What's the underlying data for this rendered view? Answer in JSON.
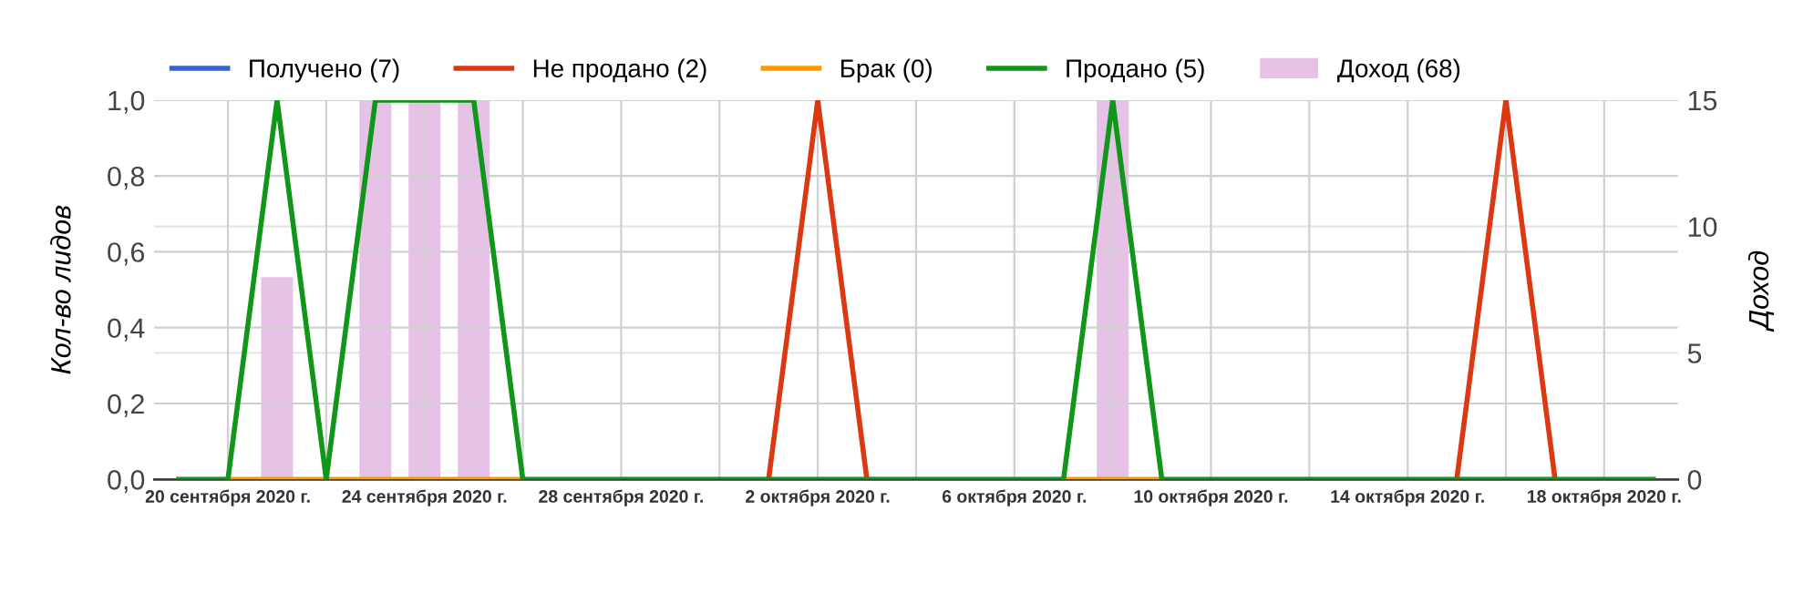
{
  "chart_data": {
    "type": "line",
    "ylabel": "Кол-во лидов",
    "y2label": "Доход",
    "x": [
      "2020-09-19",
      "2020-09-20",
      "2020-09-21",
      "2020-09-22",
      "2020-09-23",
      "2020-09-24",
      "2020-09-25",
      "2020-09-26",
      "2020-09-27",
      "2020-09-28",
      "2020-09-29",
      "2020-09-30",
      "2020-10-01",
      "2020-10-02",
      "2020-10-03",
      "2020-10-04",
      "2020-10-05",
      "2020-10-06",
      "2020-10-07",
      "2020-10-08",
      "2020-10-09",
      "2020-10-10",
      "2020-10-11",
      "2020-10-12",
      "2020-10-13",
      "2020-10-14",
      "2020-10-15",
      "2020-10-16",
      "2020-10-17",
      "2020-10-18",
      "2020-10-19"
    ],
    "series": [
      {
        "name": "Получено (7)",
        "color": "#3366cc",
        "values": [
          null,
          null,
          null,
          null,
          null,
          null,
          null,
          null,
          null,
          null,
          null,
          null,
          null,
          null,
          null,
          null,
          null,
          null,
          null,
          null,
          null,
          null,
          null,
          null,
          null,
          null,
          null,
          null,
          null,
          null,
          null
        ]
      },
      {
        "name": "Не продано (2)",
        "color": "#dc3912",
        "values": [
          null,
          null,
          null,
          null,
          null,
          null,
          null,
          null,
          null,
          null,
          null,
          null,
          0,
          1,
          0,
          null,
          null,
          null,
          null,
          null,
          null,
          null,
          null,
          null,
          null,
          null,
          0,
          1,
          0,
          null,
          null
        ]
      },
      {
        "name": "Брак (0)",
        "color": "#ff9900",
        "values": [
          null,
          0,
          0,
          0,
          0,
          0,
          0,
          0,
          null,
          null,
          null,
          null,
          null,
          null,
          null,
          null,
          null,
          null,
          0,
          0,
          0,
          null,
          null,
          null,
          null,
          null,
          null,
          null,
          null,
          null,
          null
        ]
      },
      {
        "name": "Продано (5)",
        "color": "#109618",
        "values": [
          0,
          0,
          1,
          0,
          1,
          1,
          1,
          0,
          0,
          0,
          0,
          0,
          0,
          0,
          0,
          0,
          0,
          0,
          0,
          1,
          0,
          0,
          0,
          0,
          0,
          0,
          0,
          0,
          0,
          0,
          0
        ]
      },
      {
        "name": "Доход (68)",
        "type": "bar",
        "axis": "y2",
        "color": "#e6c3e6",
        "values": [
          null,
          null,
          8,
          null,
          15,
          15,
          15,
          null,
          null,
          null,
          null,
          null,
          null,
          null,
          null,
          null,
          null,
          null,
          null,
          15,
          null,
          null,
          null,
          null,
          null,
          null,
          null,
          null,
          null,
          null,
          null
        ]
      }
    ],
    "xlim": [
      "2020-09-18T12:00",
      "2020-10-19T12:00"
    ],
    "xticks": [
      {
        "value": "2020-09-20",
        "label": "20 сентября 2020 г."
      },
      {
        "value": "2020-09-22",
        "label": null
      },
      {
        "value": "2020-09-24",
        "label": "24 сентября 2020 г."
      },
      {
        "value": "2020-09-26",
        "label": null
      },
      {
        "value": "2020-09-28",
        "label": "28 сентября 2020 г."
      },
      {
        "value": "2020-09-30",
        "label": null
      },
      {
        "value": "2020-10-02",
        "label": "2 октября 2020 г."
      },
      {
        "value": "2020-10-04",
        "label": null
      },
      {
        "value": "2020-10-06",
        "label": "6 октября 2020 г."
      },
      {
        "value": "2020-10-08",
        "label": null
      },
      {
        "value": "2020-10-10",
        "label": "10 октября 2020 г."
      },
      {
        "value": "2020-10-12",
        "label": null
      },
      {
        "value": "2020-10-14",
        "label": "14 октября 2020 г."
      },
      {
        "value": "2020-10-16",
        "label": null
      },
      {
        "value": "2020-10-18",
        "label": "18 октября 2020 г."
      }
    ],
    "ylim": [
      0,
      1
    ],
    "yticks": [
      {
        "value": 0,
        "label": "0,0"
      },
      {
        "value": 0.2,
        "label": "0,2"
      },
      {
        "value": 0.4,
        "label": "0,4"
      },
      {
        "value": 0.6,
        "label": "0,6"
      },
      {
        "value": 0.8,
        "label": "0,8"
      },
      {
        "value": 1,
        "label": "1,0"
      }
    ],
    "y2lim": [
      0,
      15
    ],
    "y2ticks": [
      0,
      5,
      10,
      15
    ],
    "grid": true,
    "legend": "top left"
  }
}
